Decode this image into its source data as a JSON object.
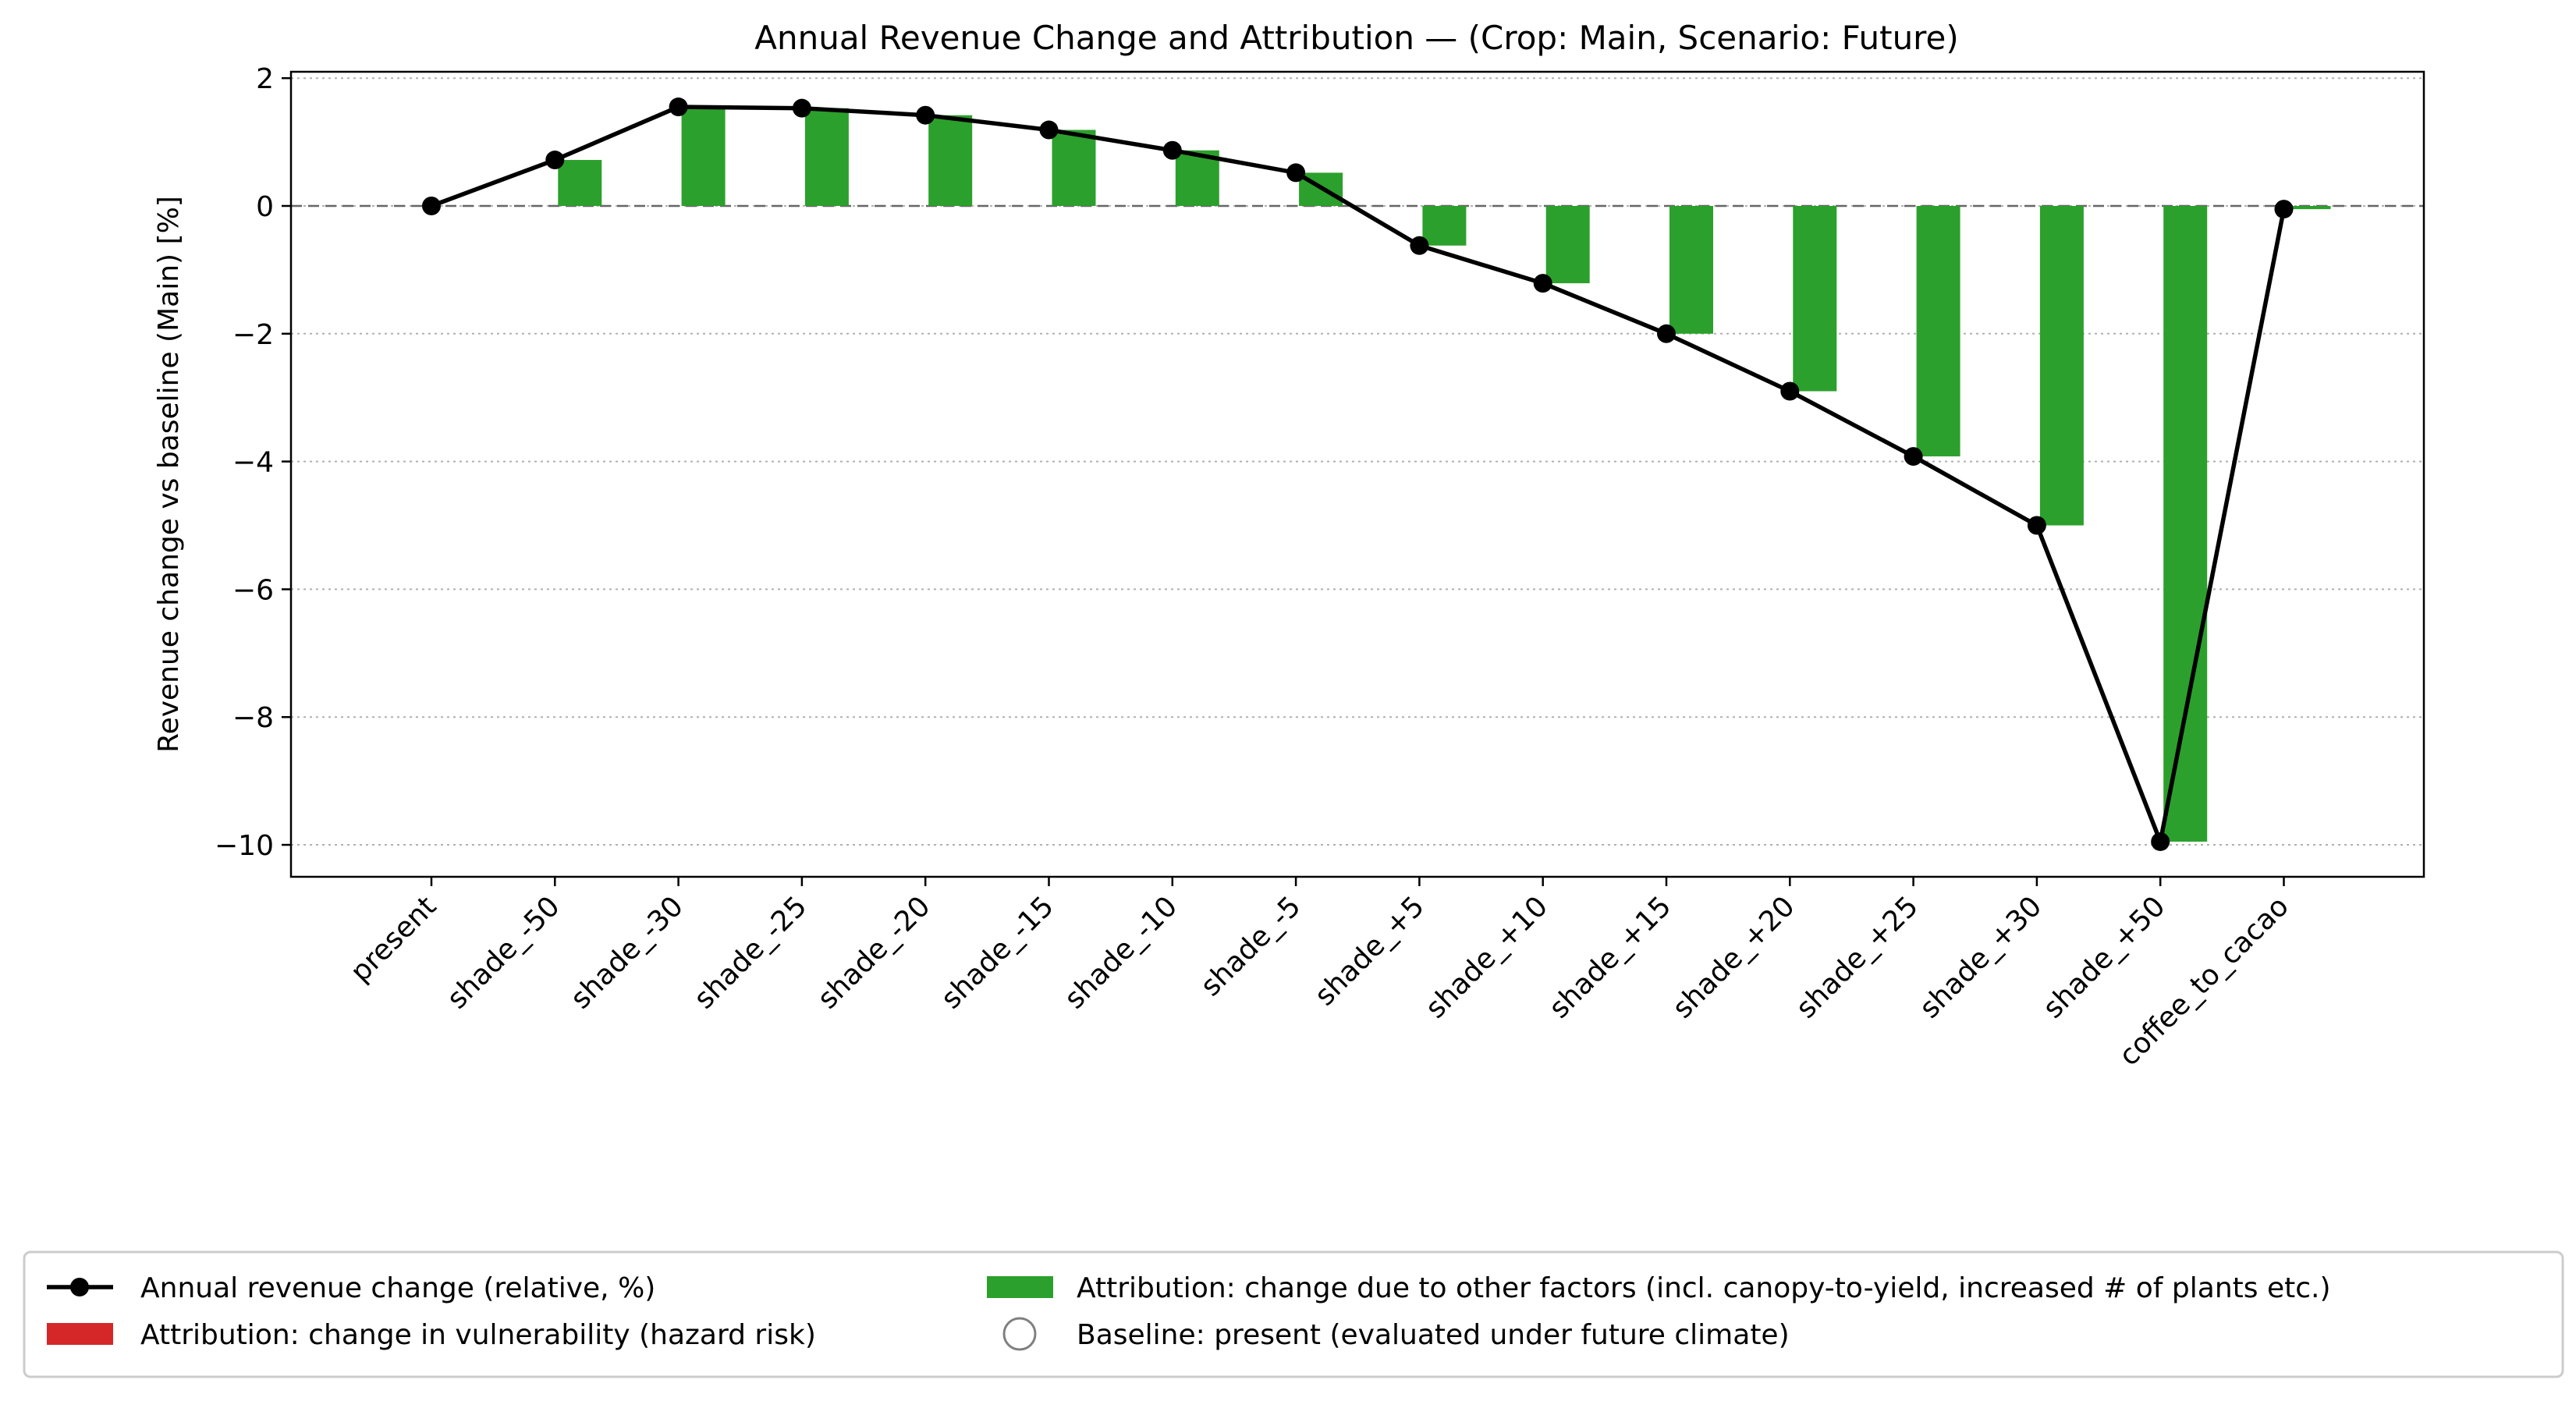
{
  "chart_data": {
    "type": "bar",
    "title": "Annual Revenue Change and Attribution — (Crop: Main, Scenario: Future)",
    "ylabel": "Revenue change vs baseline (Main) [%]",
    "xlabel": "",
    "categories": [
      "present",
      "shade_-50",
      "shade_-30",
      "shade_-25",
      "shade_-20",
      "shade_-15",
      "shade_-10",
      "shade_-5",
      "shade_+5",
      "shade_+10",
      "shade_+15",
      "shade_+20",
      "shade_+25",
      "shade_+30",
      "shade_+50",
      "coffee_to_cacao"
    ],
    "ylim": [
      -10.5,
      2.1
    ],
    "yticks": [
      2,
      0,
      -2,
      -4,
      -6,
      -8,
      -10
    ],
    "ytick_labels": [
      "2",
      "0",
      "−2",
      "−4",
      "−6",
      "−8",
      "−10"
    ],
    "grid": "y-dotted",
    "zero_line": "dashed",
    "series": [
      {
        "name": "Annual revenue change (relative, %)",
        "kind": "line-markers",
        "color": "#000000",
        "values": [
          0,
          0.72,
          1.55,
          1.53,
          1.42,
          1.19,
          0.87,
          0.52,
          -0.62,
          -1.21,
          -2.0,
          -2.9,
          -3.92,
          -5.0,
          -9.95,
          -0.05
        ]
      },
      {
        "name": "Attribution: change in vulnerability (hazard risk)",
        "kind": "bar",
        "color": "#d62728",
        "values": [
          0,
          0,
          0,
          0,
          0,
          0,
          0,
          0,
          0,
          0,
          0,
          0,
          0,
          0,
          0,
          0
        ]
      },
      {
        "name": "Attribution: change due to other factors (incl. canopy-to-yield, increased # of plants etc.)",
        "kind": "bar",
        "color": "#2ca02c",
        "values": [
          0,
          0.72,
          1.55,
          1.53,
          1.42,
          1.19,
          0.87,
          0.52,
          -0.62,
          -1.21,
          -2.0,
          -2.9,
          -3.92,
          -5.0,
          -9.95,
          -0.05
        ]
      }
    ],
    "legend": {
      "placement": "bottom",
      "entries": [
        {
          "label": "Annual revenue change (relative, %)",
          "symbol": "line-marker",
          "color": "#000000"
        },
        {
          "label": "Attribution: change in vulnerability (hazard risk)",
          "symbol": "patch",
          "color": "#d62728"
        },
        {
          "label": "Attribution: change due to other factors (incl. canopy-to-yield, increased # of plants etc.)",
          "symbol": "patch",
          "color": "#2ca02c"
        },
        {
          "label": "Baseline: present (evaluated under future climate)",
          "symbol": "open-circle",
          "color": "#808080"
        }
      ]
    }
  }
}
